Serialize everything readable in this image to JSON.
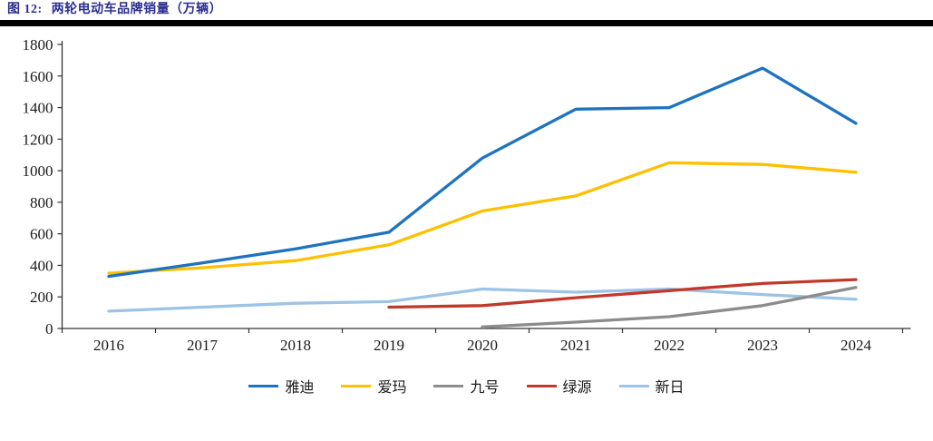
{
  "header": {
    "figure_label": "图 12:",
    "figure_title": "两轮电动车品牌销量（万辆）"
  },
  "colors": {
    "title_text": "#2A2F8F",
    "divider": "#000000",
    "axis": "#333333",
    "tick_label": "#1A1A1A"
  },
  "chart_data": {
    "type": "line",
    "title": "两轮电动车品牌销量（万辆）",
    "categories": [
      "2016",
      "2017",
      "2018",
      "2019",
      "2020",
      "2021",
      "2022",
      "2023",
      "2024"
    ],
    "series": [
      {
        "name": "雅迪",
        "key": "yadi",
        "color": "#1E73BE",
        "values": [
          330,
          415,
          505,
          610,
          1080,
          1390,
          1400,
          1650,
          1300
        ]
      },
      {
        "name": "爱玛",
        "key": "aima",
        "color": "#FFC000",
        "values": [
          350,
          385,
          430,
          530,
          745,
          840,
          1050,
          1040,
          990
        ]
      },
      {
        "name": "九号",
        "key": "jiuhao",
        "color": "#8C8C8C",
        "values": [
          null,
          null,
          null,
          null,
          10,
          40,
          75,
          145,
          260
        ]
      },
      {
        "name": "绿源",
        "key": "lvyuan",
        "color": "#C0392B",
        "values": [
          null,
          null,
          null,
          135,
          145,
          195,
          240,
          285,
          310
        ]
      },
      {
        "name": "新日",
        "key": "xinri",
        "color": "#9DC3E6",
        "values": [
          110,
          135,
          160,
          170,
          250,
          230,
          250,
          215,
          185
        ]
      }
    ],
    "xlabel": "",
    "ylabel": "",
    "ylim": [
      0,
      1800
    ],
    "ytick_step": 200,
    "grid": false,
    "legend_position": "bottom"
  }
}
